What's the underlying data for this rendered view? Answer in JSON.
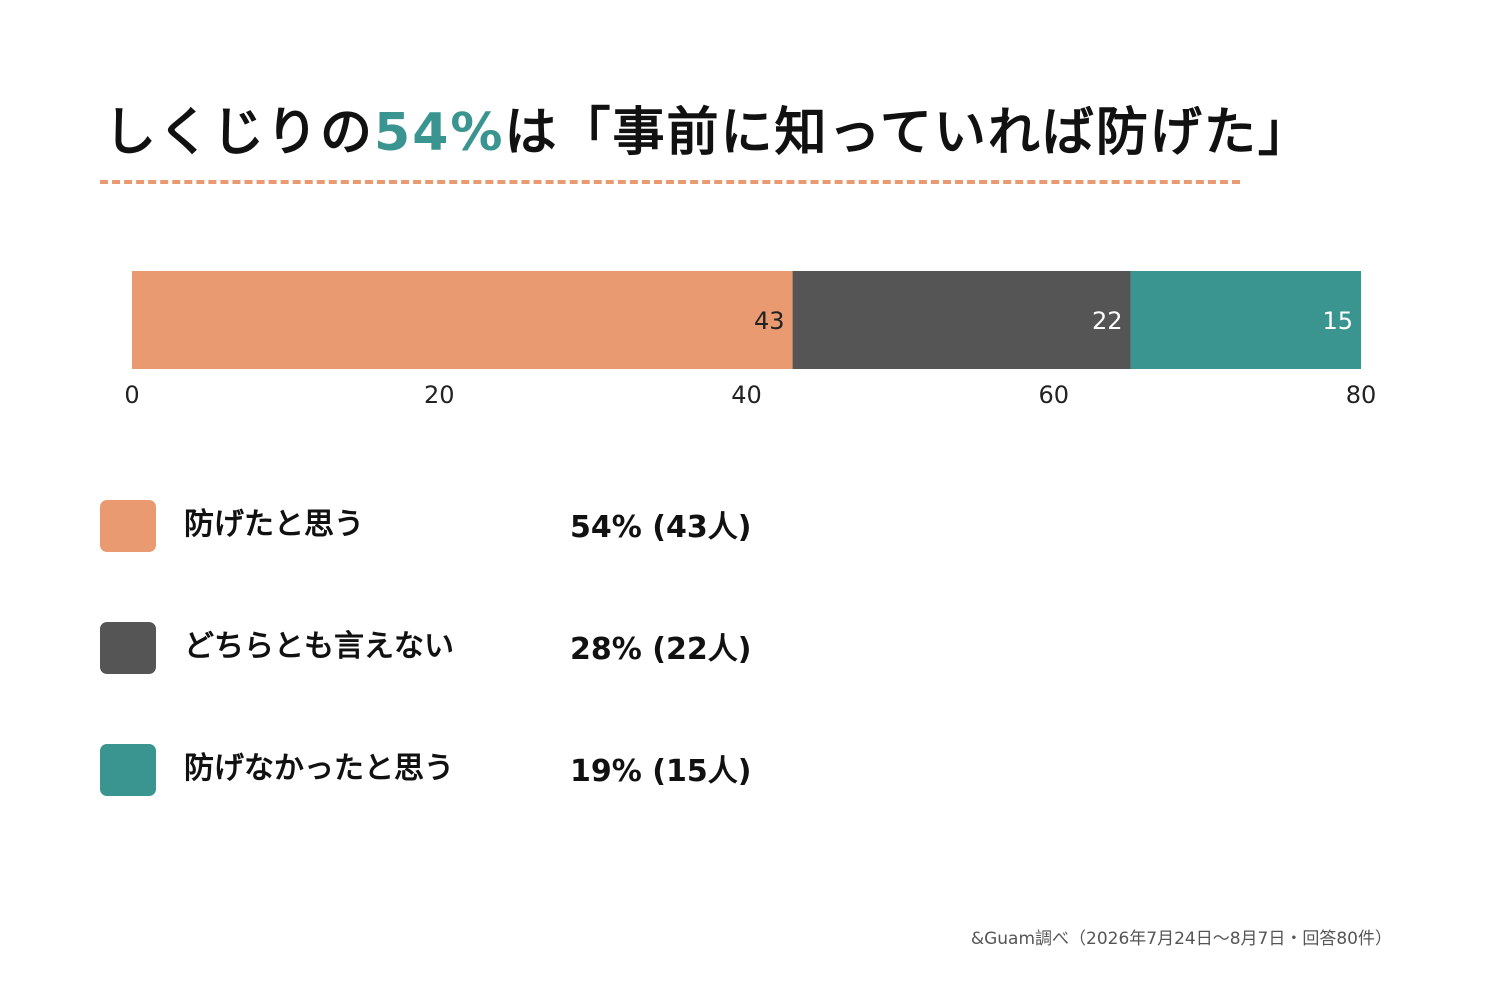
{
  "title": {
    "prefix": "しくじりの",
    "highlight": "54%",
    "suffix": "は「事前に知っていれば防げた」"
  },
  "colors": {
    "orange": "#e99a70",
    "gray": "#555555",
    "teal": "#3a9490"
  },
  "chart_data": {
    "type": "bar",
    "orientation": "horizontal-stacked",
    "categories": [
      ""
    ],
    "series": [
      {
        "name": "防げたと思う",
        "values": [
          43
        ],
        "color": "#e99a70"
      },
      {
        "name": "どちらとも言えない",
        "values": [
          22
        ],
        "color": "#555555"
      },
      {
        "name": "防げなかったと思う",
        "values": [
          15
        ],
        "color": "#3a9490"
      }
    ],
    "xlim": [
      0,
      80
    ],
    "xticks": [
      0,
      20,
      40,
      60,
      80
    ],
    "data_labels": [
      "43",
      "22",
      "15"
    ],
    "grid": false,
    "title": "",
    "xlabel": "",
    "ylabel": ""
  },
  "legend": [
    {
      "label": "防げたと思う",
      "value": "54% (43人)",
      "color": "#e99a70"
    },
    {
      "label": "どちらとも言えない",
      "value": "28% (22人)",
      "color": "#555555"
    },
    {
      "label": "防げなかったと思う",
      "value": "19% (15人)",
      "color": "#3a9490"
    }
  ],
  "source": "&Guam調べ（2026年7月24日〜8月7日・回答80件）"
}
